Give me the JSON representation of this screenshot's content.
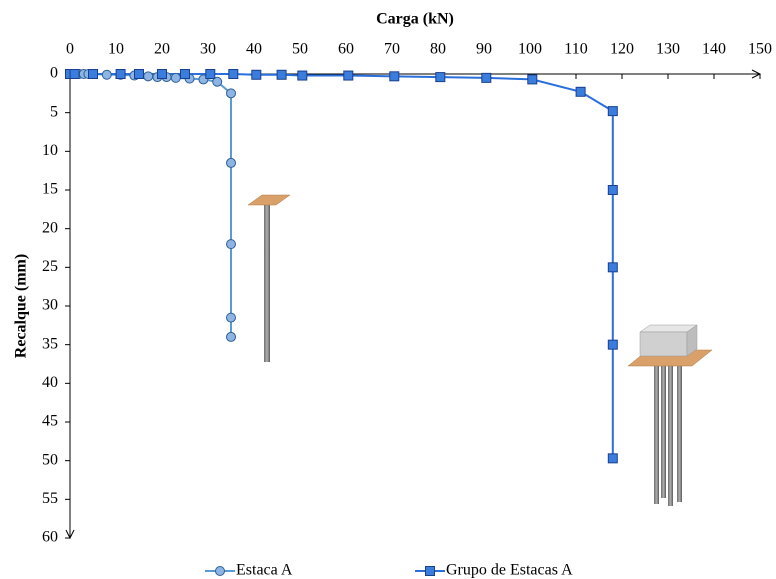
{
  "chart_data": {
    "type": "scatter",
    "x_label": "Carga (kN)",
    "y_label": "Recalque (mm)",
    "xlim": [
      0,
      150
    ],
    "xticks": [
      0,
      10,
      20,
      30,
      40,
      50,
      60,
      70,
      80,
      90,
      100,
      110,
      120,
      130,
      140,
      150
    ],
    "ylim": [
      0,
      60
    ],
    "yticks": [
      0,
      5,
      10,
      15,
      20,
      25,
      30,
      35,
      40,
      45,
      50,
      55,
      60
    ],
    "y_inverted": true,
    "x_axis_position": "top",
    "legend": "bottom",
    "series": [
      {
        "name": "Estaca A",
        "color": "#5b9bd5",
        "marker": "circle",
        "marker_color": "#8db4e2",
        "x": [
          0,
          1,
          2,
          3,
          4,
          5,
          8,
          11,
          14,
          17,
          19,
          21,
          23,
          26,
          29,
          32,
          35,
          35,
          35,
          35,
          35
        ],
        "values": [
          0,
          0,
          0,
          0,
          0,
          0,
          0.1,
          0.1,
          0.2,
          0.3,
          0.4,
          0.4,
          0.5,
          0.6,
          0.7,
          1.0,
          2.5,
          11.5,
          22,
          31.5,
          34
        ]
      },
      {
        "name": "Grupo de Estacas A",
        "color": "#2a6fdb",
        "marker": "square",
        "marker_color": "#3b7ddd",
        "x": [
          0,
          1,
          5,
          11,
          15,
          20,
          25,
          30.5,
          35.5,
          40.5,
          46,
          50.5,
          60.5,
          70.5,
          80.5,
          90.5,
          100.5,
          111,
          118,
          118,
          118,
          118,
          118
        ],
        "values": [
          0,
          0,
          0,
          0,
          0,
          0,
          0,
          0,
          0,
          0.1,
          0.1,
          0.2,
          0.2,
          0.3,
          0.4,
          0.5,
          0.7,
          2.3,
          4.8,
          15,
          25,
          35,
          49.7
        ]
      }
    ]
  }
}
